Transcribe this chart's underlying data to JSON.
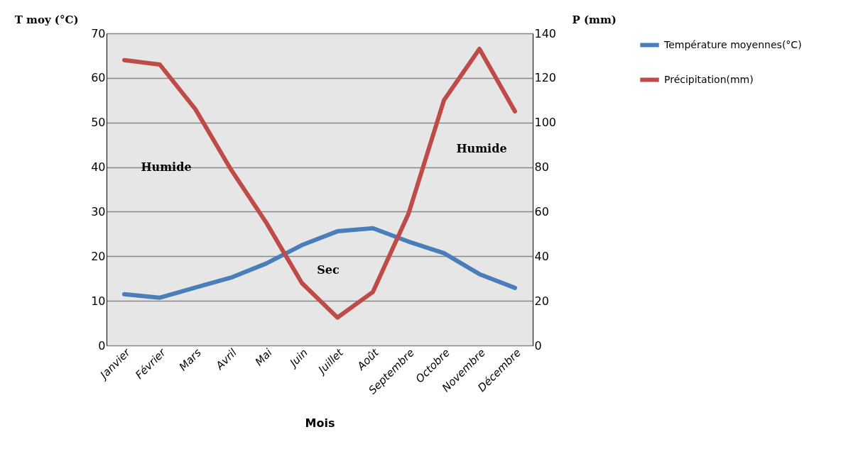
{
  "chart_data": {
    "type": "line",
    "xlabel": "Mois",
    "ylabel": "T moy (°C)",
    "y2label": "P (mm)",
    "categories": [
      "Janvier",
      "Février",
      "Mars",
      "Avril",
      "Mai",
      "Juin",
      "Juillet",
      "Août",
      "Septembre",
      "Octobre",
      "Novembre",
      "Décembre"
    ],
    "series": [
      {
        "name": "Température moyennes(°C)",
        "color": "#4a7ebb",
        "values": [
          11.5,
          10.7,
          13,
          15.2,
          18.4,
          22.5,
          25.6,
          26.3,
          23.3,
          20.7,
          16,
          12.9
        ]
      },
      {
        "name": "Précipitation(mm)",
        "color": "#be4b48",
        "axis": "y2",
        "values": [
          128,
          126,
          106,
          79,
          55,
          28,
          12.5,
          24,
          59,
          110,
          133,
          105
        ]
      }
    ],
    "ylim": [
      0,
      70
    ],
    "yticks": [
      0,
      10,
      20,
      30,
      40,
      50,
      60,
      70
    ],
    "y2lim": [
      0,
      140
    ],
    "y2ticks": [
      0,
      20,
      40,
      60,
      80,
      100,
      120,
      140
    ],
    "grid": "y",
    "legend": "right",
    "marker": "none",
    "line_style": "solid",
    "annotations": [
      "Humide",
      "Sec",
      "Humide"
    ]
  }
}
